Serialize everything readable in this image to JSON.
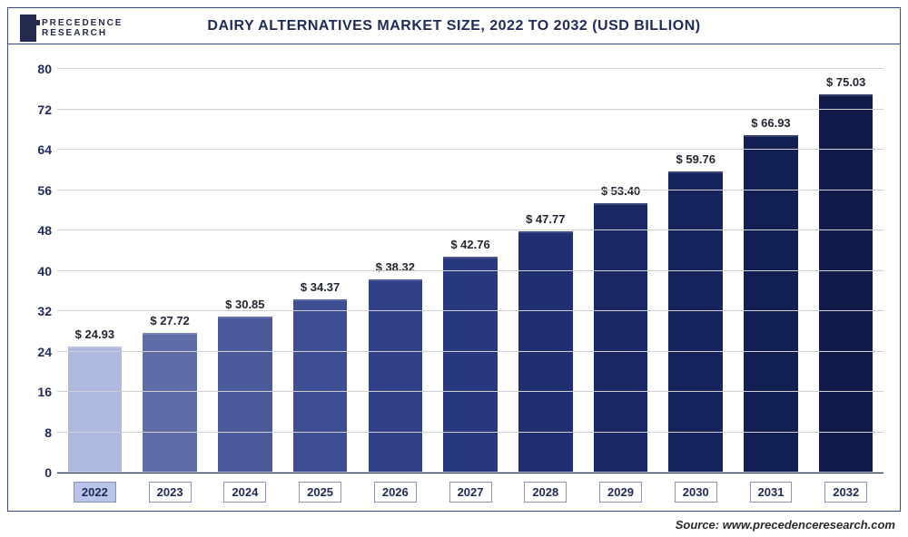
{
  "logo": {
    "line1": "PRECEDENCE",
    "line2": "RESEARCH"
  },
  "chart": {
    "type": "bar",
    "title": "DAIRY ALTERNATIVES MARKET SIZE, 2022 TO 2032 (USD BILLION)",
    "title_fontsize": 17,
    "title_color": "#1e2a5a",
    "categories": [
      "2022",
      "2023",
      "2024",
      "2025",
      "2026",
      "2027",
      "2028",
      "2029",
      "2030",
      "2031",
      "2032"
    ],
    "values": [
      24.93,
      27.72,
      30.85,
      34.37,
      38.32,
      42.76,
      47.77,
      53.4,
      59.76,
      66.93,
      75.03
    ],
    "value_labels": [
      "$ 24.93",
      "$ 27.72",
      "$ 30.85",
      "$ 34.37",
      "$ 38.32",
      "$ 42.76",
      "$ 47.77",
      "$ 53.40",
      "$ 59.76",
      "$ 66.93",
      "$ 75.03"
    ],
    "bar_colors": [
      "#aeb9df",
      "#5e6da8",
      "#4a5a9a",
      "#3e4e93",
      "#2f4089",
      "#27387e",
      "#1f2f72",
      "#192865",
      "#15245c",
      "#121f52",
      "#101b49"
    ],
    "highlight_index": 0,
    "ylim": [
      0,
      80
    ],
    "ytick_step": 8,
    "yticks": [
      0,
      8,
      16,
      24,
      32,
      40,
      48,
      56,
      64,
      72,
      80
    ],
    "grid_color": "#cfcfcf",
    "axis_color": "#1e2a5a",
    "background_color": "#ffffff",
    "border_color": "#3b4a8a",
    "label_fontsize": 13,
    "tick_fontsize": 14,
    "bar_width": 0.72,
    "xlabel_border_color": "#8a93bb",
    "xlabel_highlight_bg": "#b9c5e8"
  },
  "source": "Source: www.precedenceresearch.com"
}
